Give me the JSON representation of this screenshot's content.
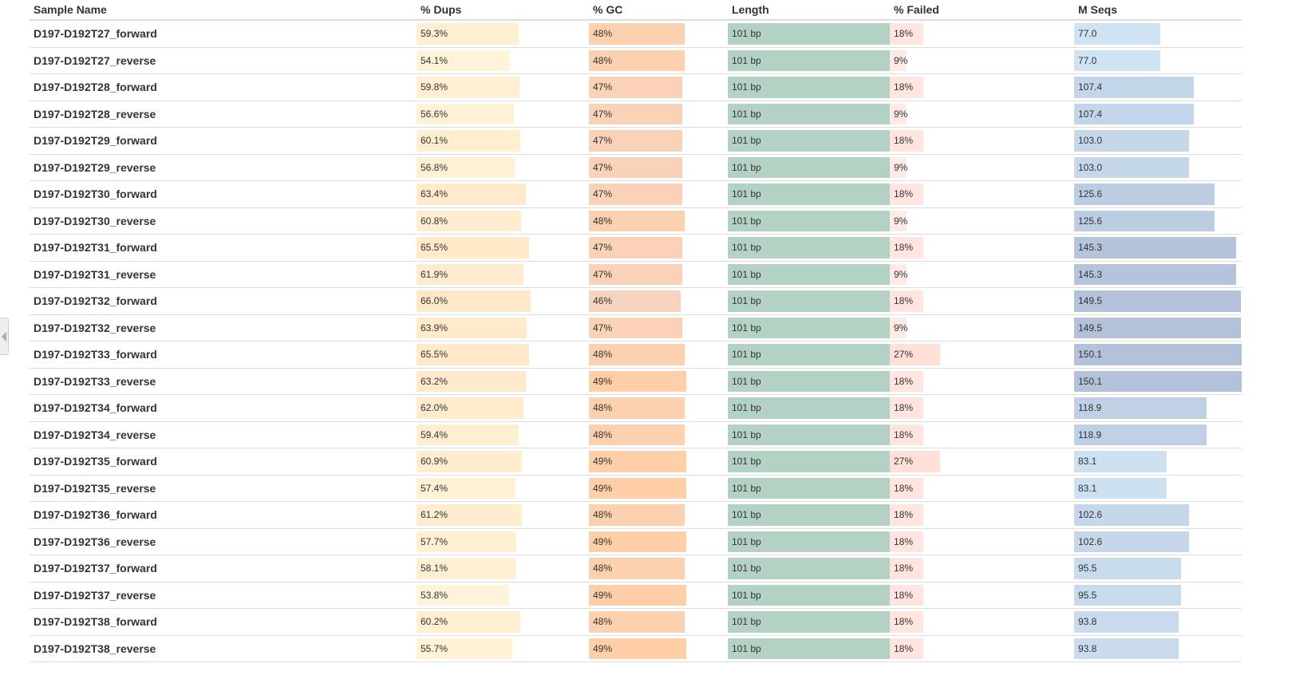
{
  "colors": {
    "dups": [
      "#fff8df",
      "#ffe8c8"
    ],
    "gc": [
      "#f6d4c0",
      "#ffcfa8"
    ],
    "length": "#b4d2c3",
    "failed": [
      "#fff0ed",
      "#ffe0d8"
    ],
    "mseqs": [
      "#cfe3f2",
      "#b3c2d9"
    ]
  },
  "columns": [
    "Sample Name",
    "% Dups",
    "% GC",
    "Length",
    "% Failed",
    "M Seqs"
  ],
  "rows": [
    {
      "name": "D197-D192T27_forward",
      "dups": "59.3%",
      "gc": "48%",
      "length": "101 bp",
      "failed": "18%",
      "mseqs": "77.0"
    },
    {
      "name": "D197-D192T27_reverse",
      "dups": "54.1%",
      "gc": "48%",
      "length": "101 bp",
      "failed": "9%",
      "mseqs": "77.0"
    },
    {
      "name": "D197-D192T28_forward",
      "dups": "59.8%",
      "gc": "47%",
      "length": "101 bp",
      "failed": "18%",
      "mseqs": "107.4"
    },
    {
      "name": "D197-D192T28_reverse",
      "dups": "56.6%",
      "gc": "47%",
      "length": "101 bp",
      "failed": "9%",
      "mseqs": "107.4"
    },
    {
      "name": "D197-D192T29_forward",
      "dups": "60.1%",
      "gc": "47%",
      "length": "101 bp",
      "failed": "18%",
      "mseqs": "103.0"
    },
    {
      "name": "D197-D192T29_reverse",
      "dups": "56.8%",
      "gc": "47%",
      "length": "101 bp",
      "failed": "9%",
      "mseqs": "103.0"
    },
    {
      "name": "D197-D192T30_forward",
      "dups": "63.4%",
      "gc": "47%",
      "length": "101 bp",
      "failed": "18%",
      "mseqs": "125.6"
    },
    {
      "name": "D197-D192T30_reverse",
      "dups": "60.8%",
      "gc": "48%",
      "length": "101 bp",
      "failed": "9%",
      "mseqs": "125.6"
    },
    {
      "name": "D197-D192T31_forward",
      "dups": "65.5%",
      "gc": "47%",
      "length": "101 bp",
      "failed": "18%",
      "mseqs": "145.3"
    },
    {
      "name": "D197-D192T31_reverse",
      "dups": "61.9%",
      "gc": "47%",
      "length": "101 bp",
      "failed": "9%",
      "mseqs": "145.3"
    },
    {
      "name": "D197-D192T32_forward",
      "dups": "66.0%",
      "gc": "46%",
      "length": "101 bp",
      "failed": "18%",
      "mseqs": "149.5"
    },
    {
      "name": "D197-D192T32_reverse",
      "dups": "63.9%",
      "gc": "47%",
      "length": "101 bp",
      "failed": "9%",
      "mseqs": "149.5"
    },
    {
      "name": "D197-D192T33_forward",
      "dups": "65.5%",
      "gc": "48%",
      "length": "101 bp",
      "failed": "27%",
      "mseqs": "150.1"
    },
    {
      "name": "D197-D192T33_reverse",
      "dups": "63.2%",
      "gc": "49%",
      "length": "101 bp",
      "failed": "18%",
      "mseqs": "150.1"
    },
    {
      "name": "D197-D192T34_forward",
      "dups": "62.0%",
      "gc": "48%",
      "length": "101 bp",
      "failed": "18%",
      "mseqs": "118.9"
    },
    {
      "name": "D197-D192T34_reverse",
      "dups": "59.4%",
      "gc": "48%",
      "length": "101 bp",
      "failed": "18%",
      "mseqs": "118.9"
    },
    {
      "name": "D197-D192T35_forward",
      "dups": "60.9%",
      "gc": "49%",
      "length": "101 bp",
      "failed": "27%",
      "mseqs": "83.1"
    },
    {
      "name": "D197-D192T35_reverse",
      "dups": "57.4%",
      "gc": "49%",
      "length": "101 bp",
      "failed": "18%",
      "mseqs": "83.1"
    },
    {
      "name": "D197-D192T36_forward",
      "dups": "61.2%",
      "gc": "48%",
      "length": "101 bp",
      "failed": "18%",
      "mseqs": "102.6"
    },
    {
      "name": "D197-D192T36_reverse",
      "dups": "57.7%",
      "gc": "49%",
      "length": "101 bp",
      "failed": "18%",
      "mseqs": "102.6"
    },
    {
      "name": "D197-D192T37_forward",
      "dups": "58.1%",
      "gc": "48%",
      "length": "101 bp",
      "failed": "18%",
      "mseqs": "95.5"
    },
    {
      "name": "D197-D192T37_reverse",
      "dups": "53.8%",
      "gc": "49%",
      "length": "101 bp",
      "failed": "18%",
      "mseqs": "95.5"
    },
    {
      "name": "D197-D192T38_forward",
      "dups": "60.2%",
      "gc": "48%",
      "length": "101 bp",
      "failed": "18%",
      "mseqs": "93.8"
    },
    {
      "name": "D197-D192T38_reverse",
      "dups": "55.7%",
      "gc": "49%",
      "length": "101 bp",
      "failed": "18%",
      "mseqs": "93.8"
    }
  ]
}
